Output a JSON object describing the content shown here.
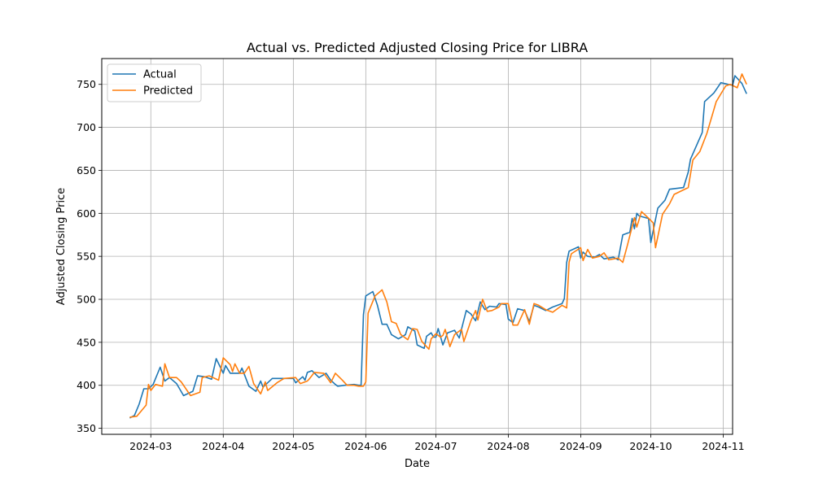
{
  "chart_data": {
    "type": "line",
    "title": "Actual vs. Predicted Adjusted Closing Price for LIBRA",
    "xlabel": "Date",
    "ylabel": "Adjusted Closing Price",
    "xlim": [
      "2024-02-09",
      "2024-11-05"
    ],
    "ylim": [
      343,
      780
    ],
    "x_ticks": [
      "2024-03-01",
      "2024-04-01",
      "2024-05-01",
      "2024-06-01",
      "2024-07-01",
      "2024-08-01",
      "2024-09-01",
      "2024-10-01",
      "2024-11-01"
    ],
    "x_tick_labels": [
      "2024-03",
      "2024-04",
      "2024-05",
      "2024-06",
      "2024-07",
      "2024-08",
      "2024-09",
      "2024-10",
      "2024-11"
    ],
    "y_ticks": [
      350,
      400,
      450,
      500,
      550,
      600,
      650,
      700,
      750
    ],
    "y_tick_labels": [
      "350",
      "400",
      "450",
      "500",
      "550",
      "600",
      "650",
      "700",
      "750"
    ],
    "grid": true,
    "legend_position": "top-left",
    "series": [
      {
        "name": "Actual",
        "color": "#1f77b4",
        "points": [
          [
            "2024-02-21",
            362
          ],
          [
            "2024-02-23",
            365
          ],
          [
            "2024-02-25",
            378
          ],
          [
            "2024-02-27",
            396
          ],
          [
            "2024-02-29",
            396
          ],
          [
            "2024-03-02",
            401
          ],
          [
            "2024-03-05",
            421
          ],
          [
            "2024-03-07",
            405
          ],
          [
            "2024-03-09",
            409
          ],
          [
            "2024-03-12",
            402
          ],
          [
            "2024-03-15",
            388
          ],
          [
            "2024-03-19",
            393
          ],
          [
            "2024-03-21",
            411
          ],
          [
            "2024-03-24",
            410
          ],
          [
            "2024-03-27",
            407
          ],
          [
            "2024-03-29",
            431
          ],
          [
            "2024-04-01",
            414
          ],
          [
            "2024-04-02",
            423
          ],
          [
            "2024-04-04",
            414
          ],
          [
            "2024-04-08",
            414
          ],
          [
            "2024-04-09",
            420
          ],
          [
            "2024-04-12",
            399
          ],
          [
            "2024-04-15",
            393
          ],
          [
            "2024-04-17",
            405
          ],
          [
            "2024-04-18",
            398
          ],
          [
            "2024-04-22",
            408
          ],
          [
            "2024-04-26",
            408
          ],
          [
            "2024-05-01",
            408
          ],
          [
            "2024-05-02",
            403
          ],
          [
            "2024-05-05",
            410
          ],
          [
            "2024-05-06",
            406
          ],
          [
            "2024-05-07",
            415
          ],
          [
            "2024-05-09",
            417
          ],
          [
            "2024-05-12",
            409
          ],
          [
            "2024-05-15",
            414
          ],
          [
            "2024-05-17",
            406
          ],
          [
            "2024-05-19",
            401
          ],
          [
            "2024-05-20",
            399
          ],
          [
            "2024-05-23",
            400
          ],
          [
            "2024-05-27",
            401
          ],
          [
            "2024-05-29",
            400
          ],
          [
            "2024-05-30",
            400
          ],
          [
            "2024-05-31",
            482
          ],
          [
            "2024-06-01",
            504
          ],
          [
            "2024-06-04",
            509
          ],
          [
            "2024-06-06",
            493
          ],
          [
            "2024-06-08",
            471
          ],
          [
            "2024-06-10",
            471
          ],
          [
            "2024-06-12",
            459
          ],
          [
            "2024-06-15",
            454
          ],
          [
            "2024-06-18",
            459
          ],
          [
            "2024-06-19",
            468
          ],
          [
            "2024-06-22",
            463
          ],
          [
            "2024-06-23",
            447
          ],
          [
            "2024-06-26",
            443
          ],
          [
            "2024-06-27",
            457
          ],
          [
            "2024-06-29",
            461
          ],
          [
            "2024-06-30",
            456
          ],
          [
            "2024-07-01",
            456
          ],
          [
            "2024-07-02",
            466
          ],
          [
            "2024-07-04",
            447
          ],
          [
            "2024-07-06",
            461
          ],
          [
            "2024-07-09",
            464
          ],
          [
            "2024-07-11",
            455
          ],
          [
            "2024-07-14",
            487
          ],
          [
            "2024-07-16",
            483
          ],
          [
            "2024-07-18",
            475
          ],
          [
            "2024-07-20",
            497
          ],
          [
            "2024-07-22",
            488
          ],
          [
            "2024-07-24",
            492
          ],
          [
            "2024-07-27",
            491
          ],
          [
            "2024-07-28",
            495
          ],
          [
            "2024-07-31",
            494
          ],
          [
            "2024-08-01",
            477
          ],
          [
            "2024-08-03",
            473
          ],
          [
            "2024-08-05",
            489
          ],
          [
            "2024-08-08",
            487
          ],
          [
            "2024-08-10",
            474
          ],
          [
            "2024-08-12",
            493
          ],
          [
            "2024-08-14",
            491
          ],
          [
            "2024-08-17",
            487
          ],
          [
            "2024-08-20",
            491
          ],
          [
            "2024-08-24",
            495
          ],
          [
            "2024-08-25",
            501
          ],
          [
            "2024-08-26",
            543
          ],
          [
            "2024-08-27",
            556
          ],
          [
            "2024-08-31",
            561
          ],
          [
            "2024-09-01",
            548
          ],
          [
            "2024-09-02",
            555
          ],
          [
            "2024-09-04",
            550
          ],
          [
            "2024-09-07",
            549
          ],
          [
            "2024-09-09",
            552
          ],
          [
            "2024-09-11",
            547
          ],
          [
            "2024-09-15",
            549
          ],
          [
            "2024-09-17",
            546
          ],
          [
            "2024-09-19",
            575
          ],
          [
            "2024-09-22",
            578
          ],
          [
            "2024-09-23",
            594
          ],
          [
            "2024-09-24",
            582
          ],
          [
            "2024-09-25",
            600
          ],
          [
            "2024-09-26",
            597
          ],
          [
            "2024-09-30",
            594
          ],
          [
            "2024-10-01",
            566
          ],
          [
            "2024-10-04",
            606
          ],
          [
            "2024-10-07",
            615
          ],
          [
            "2024-10-09",
            628
          ],
          [
            "2024-10-15",
            630
          ],
          [
            "2024-10-17",
            648
          ],
          [
            "2024-10-18",
            663
          ],
          [
            "2024-10-23",
            694
          ],
          [
            "2024-10-24",
            730
          ],
          [
            "2024-10-28",
            740
          ],
          [
            "2024-10-30",
            748
          ],
          [
            "2024-10-31",
            752
          ],
          [
            "2024-11-03",
            750
          ],
          [
            "2024-11-05",
            749
          ],
          [
            "2024-11-06",
            760
          ],
          [
            "2024-11-09",
            751
          ],
          [
            "2024-11-11",
            739
          ]
        ]
      },
      {
        "name": "Predicted",
        "color": "#ff7f0e",
        "points": [
          [
            "2024-02-21",
            363
          ],
          [
            "2024-02-24",
            364
          ],
          [
            "2024-02-28",
            377
          ],
          [
            "2024-02-29",
            401
          ],
          [
            "2024-03-01",
            394
          ],
          [
            "2024-03-03",
            401
          ],
          [
            "2024-03-06",
            399
          ],
          [
            "2024-03-07",
            425
          ],
          [
            "2024-03-09",
            409
          ],
          [
            "2024-03-12",
            409
          ],
          [
            "2024-03-14",
            404
          ],
          [
            "2024-03-18",
            388
          ],
          [
            "2024-03-22",
            392
          ],
          [
            "2024-03-23",
            409
          ],
          [
            "2024-03-26",
            411
          ],
          [
            "2024-03-30",
            406
          ],
          [
            "2024-04-01",
            432
          ],
          [
            "2024-04-04",
            424
          ],
          [
            "2024-04-05",
            416
          ],
          [
            "2024-04-06",
            425
          ],
          [
            "2024-04-08",
            414
          ],
          [
            "2024-04-10",
            414
          ],
          [
            "2024-04-12",
            422
          ],
          [
            "2024-04-14",
            402
          ],
          [
            "2024-04-17",
            390
          ],
          [
            "2024-04-19",
            404
          ],
          [
            "2024-04-20",
            394
          ],
          [
            "2024-04-24",
            403
          ],
          [
            "2024-04-27",
            408
          ],
          [
            "2024-05-02",
            409
          ],
          [
            "2024-05-04",
            402
          ],
          [
            "2024-05-07",
            405
          ],
          [
            "2024-05-08",
            408
          ],
          [
            "2024-05-10",
            415
          ],
          [
            "2024-05-14",
            414
          ],
          [
            "2024-05-17",
            403
          ],
          [
            "2024-05-19",
            414
          ],
          [
            "2024-05-22",
            406
          ],
          [
            "2024-05-24",
            400
          ],
          [
            "2024-05-27",
            400
          ],
          [
            "2024-05-29",
            399
          ],
          [
            "2024-05-31",
            399
          ],
          [
            "2024-06-01",
            404
          ],
          [
            "2024-06-02",
            484
          ],
          [
            "2024-06-05",
            504
          ],
          [
            "2024-06-08",
            511
          ],
          [
            "2024-06-10",
            497
          ],
          [
            "2024-06-12",
            474
          ],
          [
            "2024-06-14",
            472
          ],
          [
            "2024-06-16",
            459
          ],
          [
            "2024-06-19",
            453
          ],
          [
            "2024-06-21",
            466
          ],
          [
            "2024-06-23",
            465
          ],
          [
            "2024-06-25",
            451
          ],
          [
            "2024-06-28",
            442
          ],
          [
            "2024-06-29",
            454
          ],
          [
            "2024-07-01",
            460
          ],
          [
            "2024-07-03",
            456
          ],
          [
            "2024-07-04",
            458
          ],
          [
            "2024-07-05",
            465
          ],
          [
            "2024-07-07",
            445
          ],
          [
            "2024-07-09",
            459
          ],
          [
            "2024-07-12",
            465
          ],
          [
            "2024-07-13",
            451
          ],
          [
            "2024-07-16",
            475
          ],
          [
            "2024-07-18",
            487
          ],
          [
            "2024-07-19",
            476
          ],
          [
            "2024-07-21",
            500
          ],
          [
            "2024-07-23",
            486
          ],
          [
            "2024-07-25",
            487
          ],
          [
            "2024-07-28",
            491
          ],
          [
            "2024-07-29",
            495
          ],
          [
            "2024-08-01",
            495
          ],
          [
            "2024-08-03",
            470
          ],
          [
            "2024-08-05",
            470
          ],
          [
            "2024-08-08",
            488
          ],
          [
            "2024-08-10",
            471
          ],
          [
            "2024-08-12",
            495
          ],
          [
            "2024-08-14",
            493
          ],
          [
            "2024-08-17",
            488
          ],
          [
            "2024-08-20",
            485
          ],
          [
            "2024-08-24",
            493
          ],
          [
            "2024-08-26",
            490
          ],
          [
            "2024-08-27",
            543
          ],
          [
            "2024-08-28",
            553
          ],
          [
            "2024-09-01",
            560
          ],
          [
            "2024-09-02",
            545
          ],
          [
            "2024-09-04",
            558
          ],
          [
            "2024-09-06",
            548
          ],
          [
            "2024-09-09",
            550
          ],
          [
            "2024-09-11",
            554
          ],
          [
            "2024-09-13",
            546
          ],
          [
            "2024-09-17",
            548
          ],
          [
            "2024-09-19",
            543
          ],
          [
            "2024-09-21",
            563
          ],
          [
            "2024-09-24",
            595
          ],
          [
            "2024-09-25",
            584
          ],
          [
            "2024-09-27",
            602
          ],
          [
            "2024-09-29",
            597
          ],
          [
            "2024-10-02",
            589
          ],
          [
            "2024-10-03",
            560
          ],
          [
            "2024-10-06",
            599
          ],
          [
            "2024-10-09",
            611
          ],
          [
            "2024-10-11",
            622
          ],
          [
            "2024-10-17",
            630
          ],
          [
            "2024-10-19",
            662
          ],
          [
            "2024-10-22",
            672
          ],
          [
            "2024-10-25",
            693
          ],
          [
            "2024-10-29",
            730
          ],
          [
            "2024-11-02",
            748
          ],
          [
            "2024-11-04",
            750
          ],
          [
            "2024-11-07",
            746
          ],
          [
            "2024-11-09",
            762
          ],
          [
            "2024-11-11",
            750
          ]
        ]
      }
    ]
  }
}
